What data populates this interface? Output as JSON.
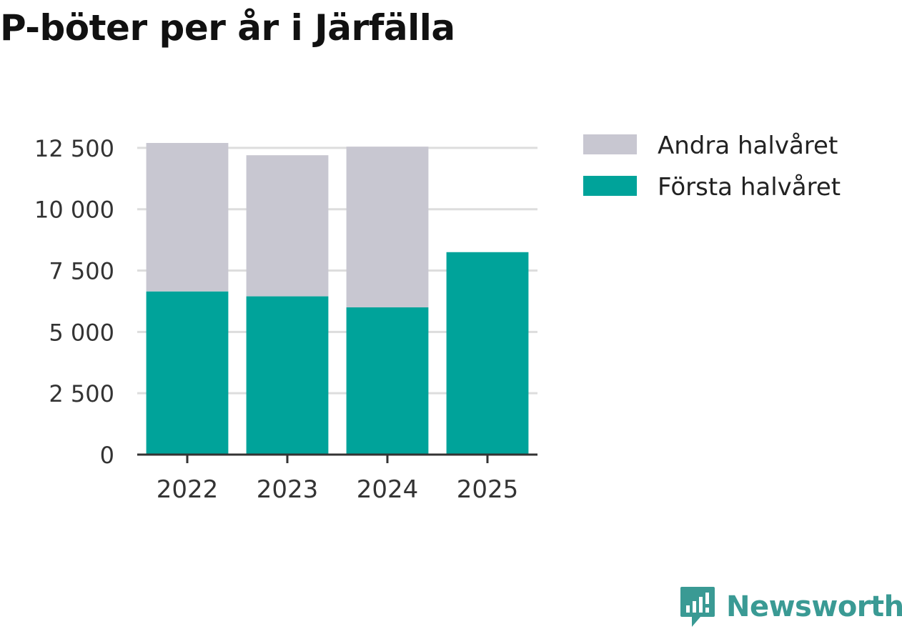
{
  "chart_data": {
    "type": "bar",
    "stacked": true,
    "title": "P-böter per år i Järfälla",
    "categories": [
      "2022",
      "2023",
      "2024",
      "2025"
    ],
    "series": [
      {
        "name": "Första halvåret",
        "color": "#00a39a",
        "values": [
          6650,
          6450,
          6000,
          8250
        ]
      },
      {
        "name": "Andra halvåret",
        "color": "#c8c7d1",
        "values": [
          6050,
          5750,
          6550,
          0
        ]
      }
    ],
    "legend_order": [
      "Andra halvåret",
      "Första halvåret"
    ],
    "yticks": [
      0,
      2500,
      5000,
      7500,
      10000,
      12500
    ],
    "ytick_labels": [
      "0",
      "2 500",
      "5 000",
      "7 500",
      "10 000",
      "12 500"
    ],
    "ylim": [
      0,
      12700
    ],
    "xlabel": "",
    "ylabel": "",
    "grid": true,
    "legend_position": "right"
  },
  "branding": {
    "logo_text": "Newsworthy",
    "logo_color": "#3a9a94"
  }
}
